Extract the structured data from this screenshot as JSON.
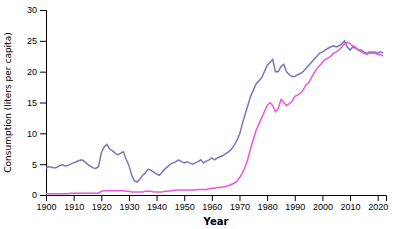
{
  "chart_data": {
    "type": "line",
    "xlabel": "Year",
    "ylabel": "Consumption (liters per capita)",
    "xlim": [
      1900,
      2023
    ],
    "ylim": [
      0,
      30
    ],
    "xticks": [
      1900,
      1910,
      1920,
      1930,
      1940,
      1950,
      1960,
      1970,
      1980,
      1990,
      2000,
      2010,
      2020
    ],
    "yticks": [
      0,
      5,
      10,
      15,
      20,
      25,
      30
    ],
    "grid": false,
    "x": [
      1900,
      1901,
      1902,
      1903,
      1904,
      1905,
      1906,
      1907,
      1908,
      1909,
      1910,
      1911,
      1912,
      1913,
      1914,
      1915,
      1916,
      1917,
      1918,
      1919,
      1920,
      1921,
      1922,
      1923,
      1924,
      1925,
      1926,
      1927,
      1928,
      1929,
      1930,
      1931,
      1932,
      1933,
      1934,
      1935,
      1936,
      1937,
      1938,
      1939,
      1940,
      1941,
      1942,
      1943,
      1944,
      1945,
      1946,
      1947,
      1948,
      1949,
      1950,
      1951,
      1952,
      1953,
      1954,
      1955,
      1956,
      1957,
      1958,
      1959,
      1960,
      1961,
      1962,
      1963,
      1964,
      1965,
      1966,
      1967,
      1968,
      1969,
      1970,
      1971,
      1972,
      1973,
      1974,
      1975,
      1976,
      1977,
      1978,
      1979,
      1980,
      1981,
      1982,
      1983,
      1984,
      1985,
      1986,
      1987,
      1988,
      1989,
      1990,
      1991,
      1992,
      1993,
      1994,
      1995,
      1996,
      1997,
      1998,
      1999,
      2000,
      2001,
      2002,
      2003,
      2004,
      2005,
      2006,
      2007,
      2008,
      2009,
      2010,
      2011,
      2012,
      2013,
      2014,
      2015,
      2016,
      2017,
      2018,
      2019,
      2020,
      2021,
      2022
    ],
    "series": [
      {
        "color": "#7777bb",
        "values": [
          4.3,
          4.6,
          4.5,
          4.4,
          4.5,
          4.8,
          4.9,
          4.7,
          4.8,
          5.0,
          5.2,
          5.4,
          5.6,
          5.7,
          5.4,
          5.0,
          4.7,
          4.4,
          4.3,
          4.6,
          6.8,
          7.8,
          8.2,
          7.5,
          7.2,
          6.8,
          6.5,
          6.8,
          7.0,
          5.8,
          4.8,
          3.2,
          2.3,
          2.1,
          2.6,
          3.2,
          3.6,
          4.2,
          4.0,
          3.7,
          3.4,
          3.2,
          3.7,
          4.2,
          4.6,
          5.0,
          5.2,
          5.4,
          5.7,
          5.4,
          5.2,
          5.4,
          5.2,
          5.0,
          5.2,
          5.4,
          5.7,
          5.2,
          5.5,
          5.7,
          6.0,
          5.7,
          6.0,
          6.2,
          6.4,
          6.7,
          7.0,
          7.4,
          8.0,
          8.8,
          9.8,
          11.5,
          13.0,
          14.5,
          16.0,
          17.0,
          18.0,
          18.5,
          19.0,
          20.0,
          21.0,
          21.5,
          22.0,
          20.0,
          20.0,
          20.8,
          21.2,
          20.0,
          19.5,
          19.2,
          19.2,
          19.5,
          19.7,
          20.0,
          20.5,
          21.0,
          21.5,
          22.0,
          22.5,
          23.0,
          23.2,
          23.5,
          23.8,
          24.0,
          24.2,
          24.0,
          24.2,
          24.5,
          25.0,
          24.0,
          23.5,
          24.0,
          23.8,
          23.5,
          23.5,
          23.2,
          23.0,
          23.2,
          23.2,
          23.2,
          23.0,
          23.2,
          23.0
        ]
      },
      {
        "color": "#ee55dd",
        "values": [
          0.2,
          0.2,
          0.2,
          0.2,
          0.2,
          0.2,
          0.2,
          0.2,
          0.2,
          0.3,
          0.3,
          0.3,
          0.3,
          0.3,
          0.3,
          0.3,
          0.3,
          0.3,
          0.3,
          0.3,
          0.6,
          0.7,
          0.7,
          0.7,
          0.7,
          0.7,
          0.7,
          0.7,
          0.7,
          0.6,
          0.6,
          0.5,
          0.5,
          0.5,
          0.5,
          0.5,
          0.6,
          0.6,
          0.6,
          0.5,
          0.5,
          0.5,
          0.5,
          0.6,
          0.6,
          0.7,
          0.7,
          0.8,
          0.8,
          0.8,
          0.8,
          0.8,
          0.8,
          0.8,
          0.8,
          0.9,
          0.9,
          0.9,
          0.9,
          1.0,
          1.1,
          1.1,
          1.2,
          1.2,
          1.3,
          1.4,
          1.5,
          1.7,
          1.9,
          2.2,
          2.8,
          3.5,
          4.5,
          5.8,
          7.5,
          9.0,
          10.5,
          11.5,
          12.5,
          13.5,
          14.5,
          15.0,
          14.5,
          13.5,
          14.0,
          15.5,
          15.0,
          14.5,
          14.8,
          15.2,
          16.0,
          16.2,
          16.5,
          17.0,
          17.8,
          18.2,
          19.0,
          19.8,
          20.5,
          21.0,
          21.5,
          22.0,
          22.2,
          22.5,
          23.0,
          23.2,
          23.5,
          24.0,
          24.5,
          24.8,
          24.5,
          24.2,
          24.0,
          23.5,
          23.2,
          23.0,
          22.8,
          23.0,
          23.0,
          23.0,
          22.8,
          22.8,
          22.5
        ]
      }
    ]
  }
}
